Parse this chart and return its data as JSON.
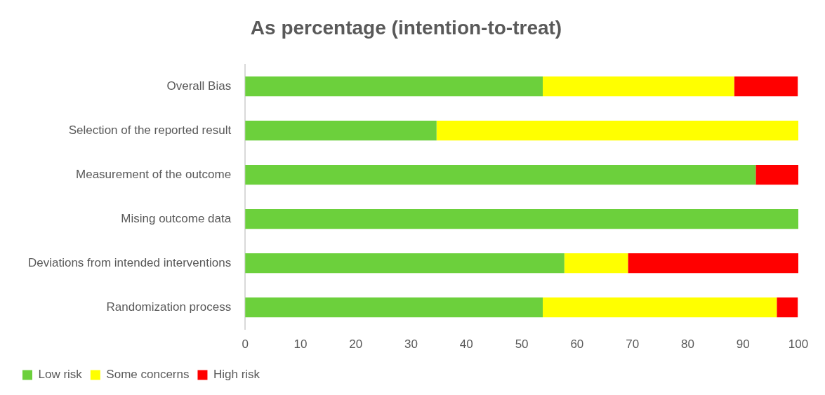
{
  "chart_data": {
    "type": "bar",
    "orientation": "horizontal",
    "stacked": true,
    "title": "As percentage (intention-to-treat)",
    "categories": [
      "Overall Bias",
      "Selection of the reported result",
      "Measurement of the outcome",
      "Mising outcome data",
      "Deviations from intended interventions",
      "Randomization process"
    ],
    "series": [
      {
        "name": "Low risk",
        "color": "#6cd03c",
        "values": [
          53.8,
          34.6,
          92.3,
          100,
          57.7,
          53.8
        ]
      },
      {
        "name": "Some concerns",
        "color": "#ffff00",
        "values": [
          34.6,
          65.4,
          0,
          0,
          11.5,
          42.3
        ]
      },
      {
        "name": "High risk",
        "color": "#ff0000",
        "values": [
          11.5,
          0,
          7.7,
          0,
          30.8,
          3.8
        ]
      }
    ],
    "xlim": [
      0,
      100
    ],
    "xticks": [
      0,
      10,
      20,
      30,
      40,
      50,
      60,
      70,
      80,
      90,
      100
    ],
    "grid": false,
    "legend": "bottom"
  }
}
